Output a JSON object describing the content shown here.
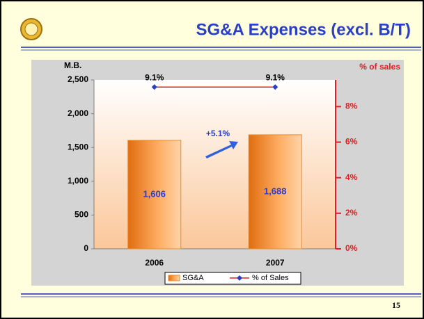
{
  "chart_data": {
    "type": "bar",
    "title": "SG&A Expenses (excl. B/T)",
    "y_label": "M.B.",
    "y2_label": "% of sales",
    "annotation": "+5.1%",
    "page_number": "15",
    "categories": [
      "2006",
      "2007"
    ],
    "series": [
      {
        "name": "SG&A",
        "type": "bar",
        "color": "#f08a24",
        "values": [
          1606,
          1688
        ],
        "value_labels": [
          "1,606",
          "1,688"
        ]
      },
      {
        "name": "% of Sales",
        "type": "line",
        "axis": "y2",
        "color": "#e02020",
        "marker_color": "#2a3fc8",
        "values": [
          9.1,
          9.1
        ],
        "value_labels": [
          "9.1%",
          "9.1%"
        ]
      }
    ],
    "ylim": [
      0,
      2500
    ],
    "yticks": [
      0,
      {
        "value": 500,
        "label": "500"
      },
      {
        "value": 1000,
        "label": "1,000"
      },
      {
        "value": 1500,
        "label": "1,500"
      },
      {
        "value": 2000,
        "label": "2,000"
      },
      {
        "value": 2500,
        "label": "2,500"
      }
    ],
    "y2lim": [
      0,
      9.5
    ],
    "y2ticks": [
      {
        "value": 0,
        "label": "0%"
      },
      {
        "value": 2,
        "label": "2%"
      },
      {
        "value": 4,
        "label": "4%"
      },
      {
        "value": 6,
        "label": "6%"
      },
      {
        "value": 8,
        "label": "8%"
      }
    ],
    "legend": "bottom"
  }
}
